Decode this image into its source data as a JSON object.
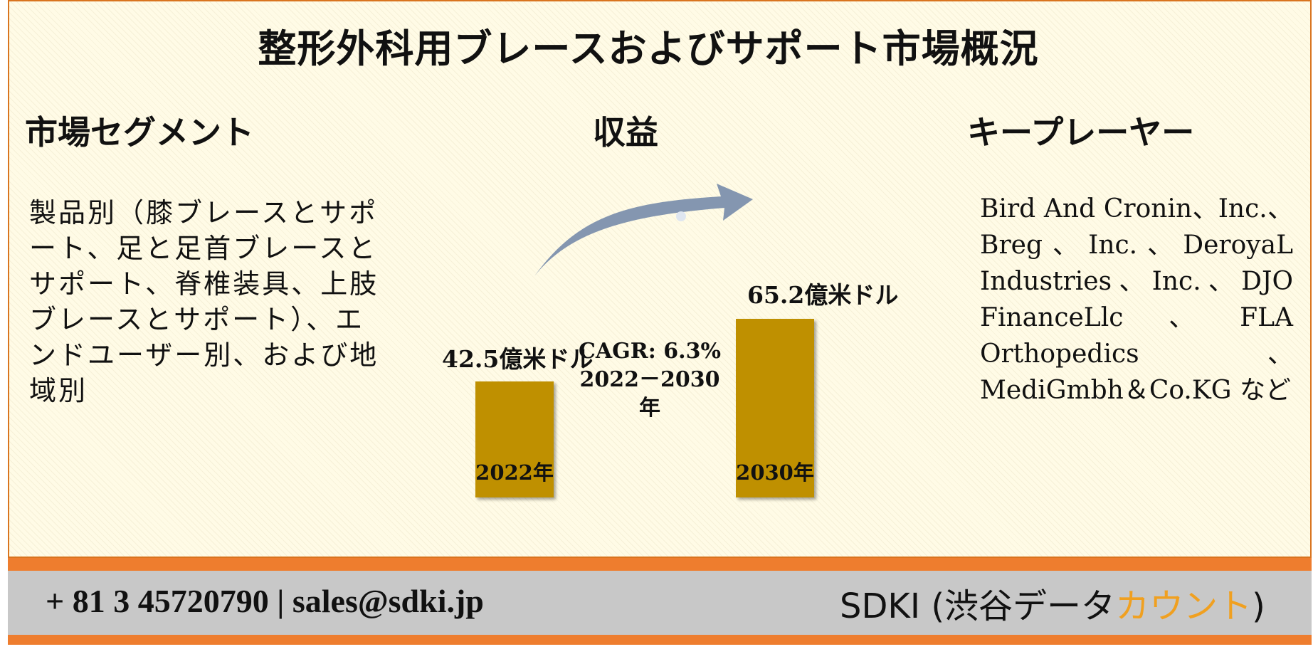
{
  "title": "整形外科用ブレースおよびサポート市場概況",
  "segments": {
    "heading": "市場セグメント",
    "text": "製品別（膝ブレースとサポート、足と足首ブレースとサポート、脊椎装具、上肢ブレースとサポート）、エンドユーザー別、および地域別"
  },
  "revenue": {
    "heading": "収益",
    "cagr_line1": "CAGR: 6.3%",
    "cagr_line2": "2022－2030年"
  },
  "players": {
    "heading": "キープレーヤー",
    "text": "Bird And Cronin、Inc.、Breg、Inc.、DeroyaL Industries、Inc.、DJO FinanceLlc、FLA Orthopedics、MediGmbh＆Co.KG など"
  },
  "chart_data": {
    "type": "bar",
    "categories": [
      "2022年",
      "2030年"
    ],
    "values": [
      42.5,
      65.2
    ],
    "value_labels": [
      "42.5億米ドル",
      "65.2億米ドル"
    ],
    "unit": "億米ドル",
    "colors": {
      "bar": "#bf9000",
      "arrow": "#8496b0"
    }
  },
  "footer": {
    "contact": "+ 81 3 45720790 | sales@sdki.jp",
    "brand_main": "SDKI (渋谷データ",
    "brand_accent": "カウント",
    "brand_close": ")",
    "colors": {
      "band": "#ee7d2e",
      "bar": "#c8c8c8",
      "accent": "#f0a020"
    }
  }
}
